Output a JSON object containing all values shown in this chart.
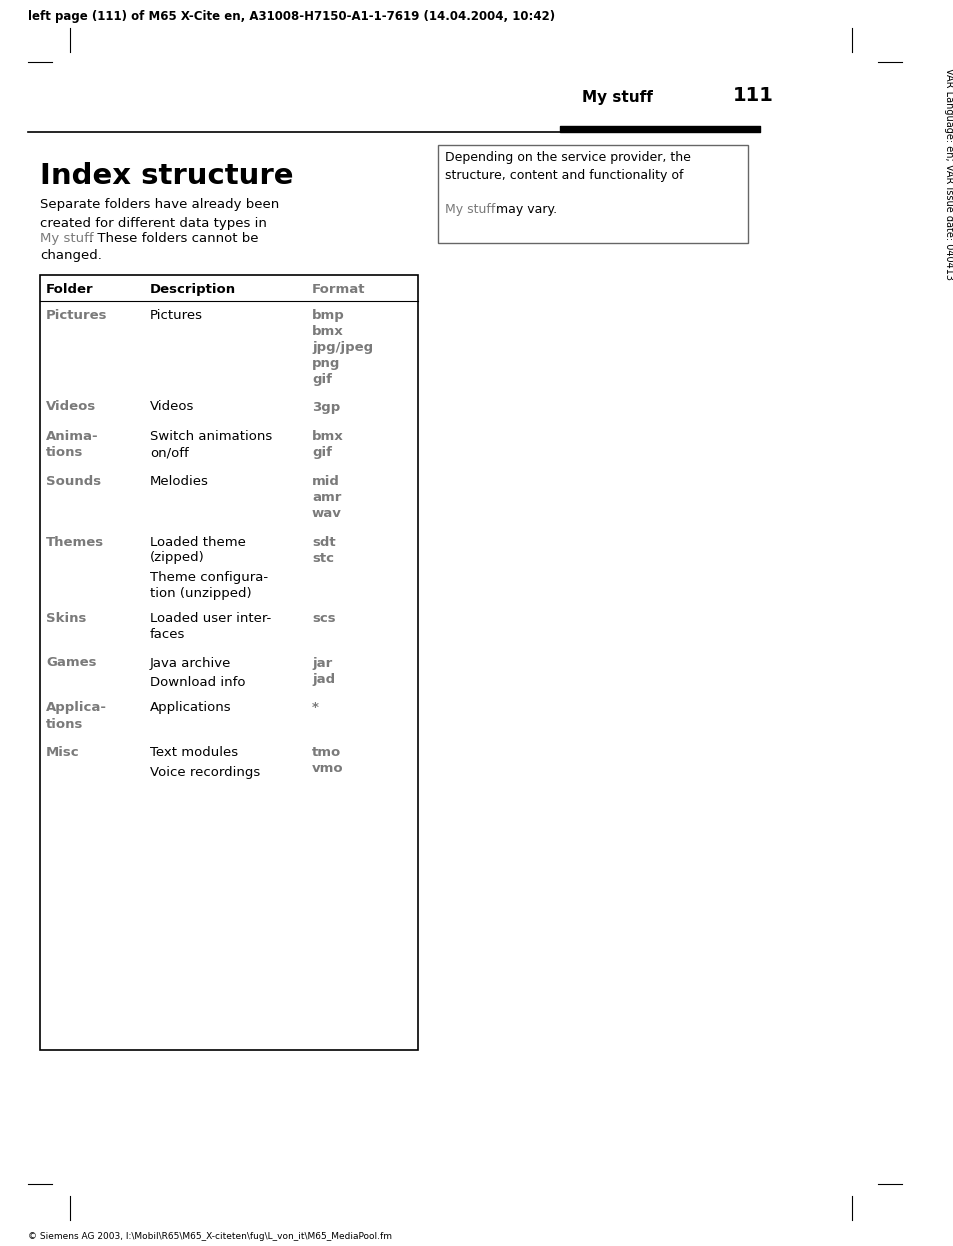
{
  "header_text": "left page (111) of M65 X-Cite en, A31008-H7150-A1-1-7619 (14.04.2004, 10:42)",
  "page_label": "My stuff",
  "page_number": "111",
  "title": "Index structure",
  "sidebar_text": "VAR Language: en; VAR issue date: 040413",
  "footer_path": "I:\\Mobil\\R65\\M65_X-citeten\\fug\\L_von_it\\M65_MediaPool.fm",
  "footer_copyright": "© Siemens AG 2003,",
  "bg_color": "#ffffff",
  "text_color": "#000000",
  "gray_color": "#7a7a7a",
  "table_border_color": "#000000"
}
